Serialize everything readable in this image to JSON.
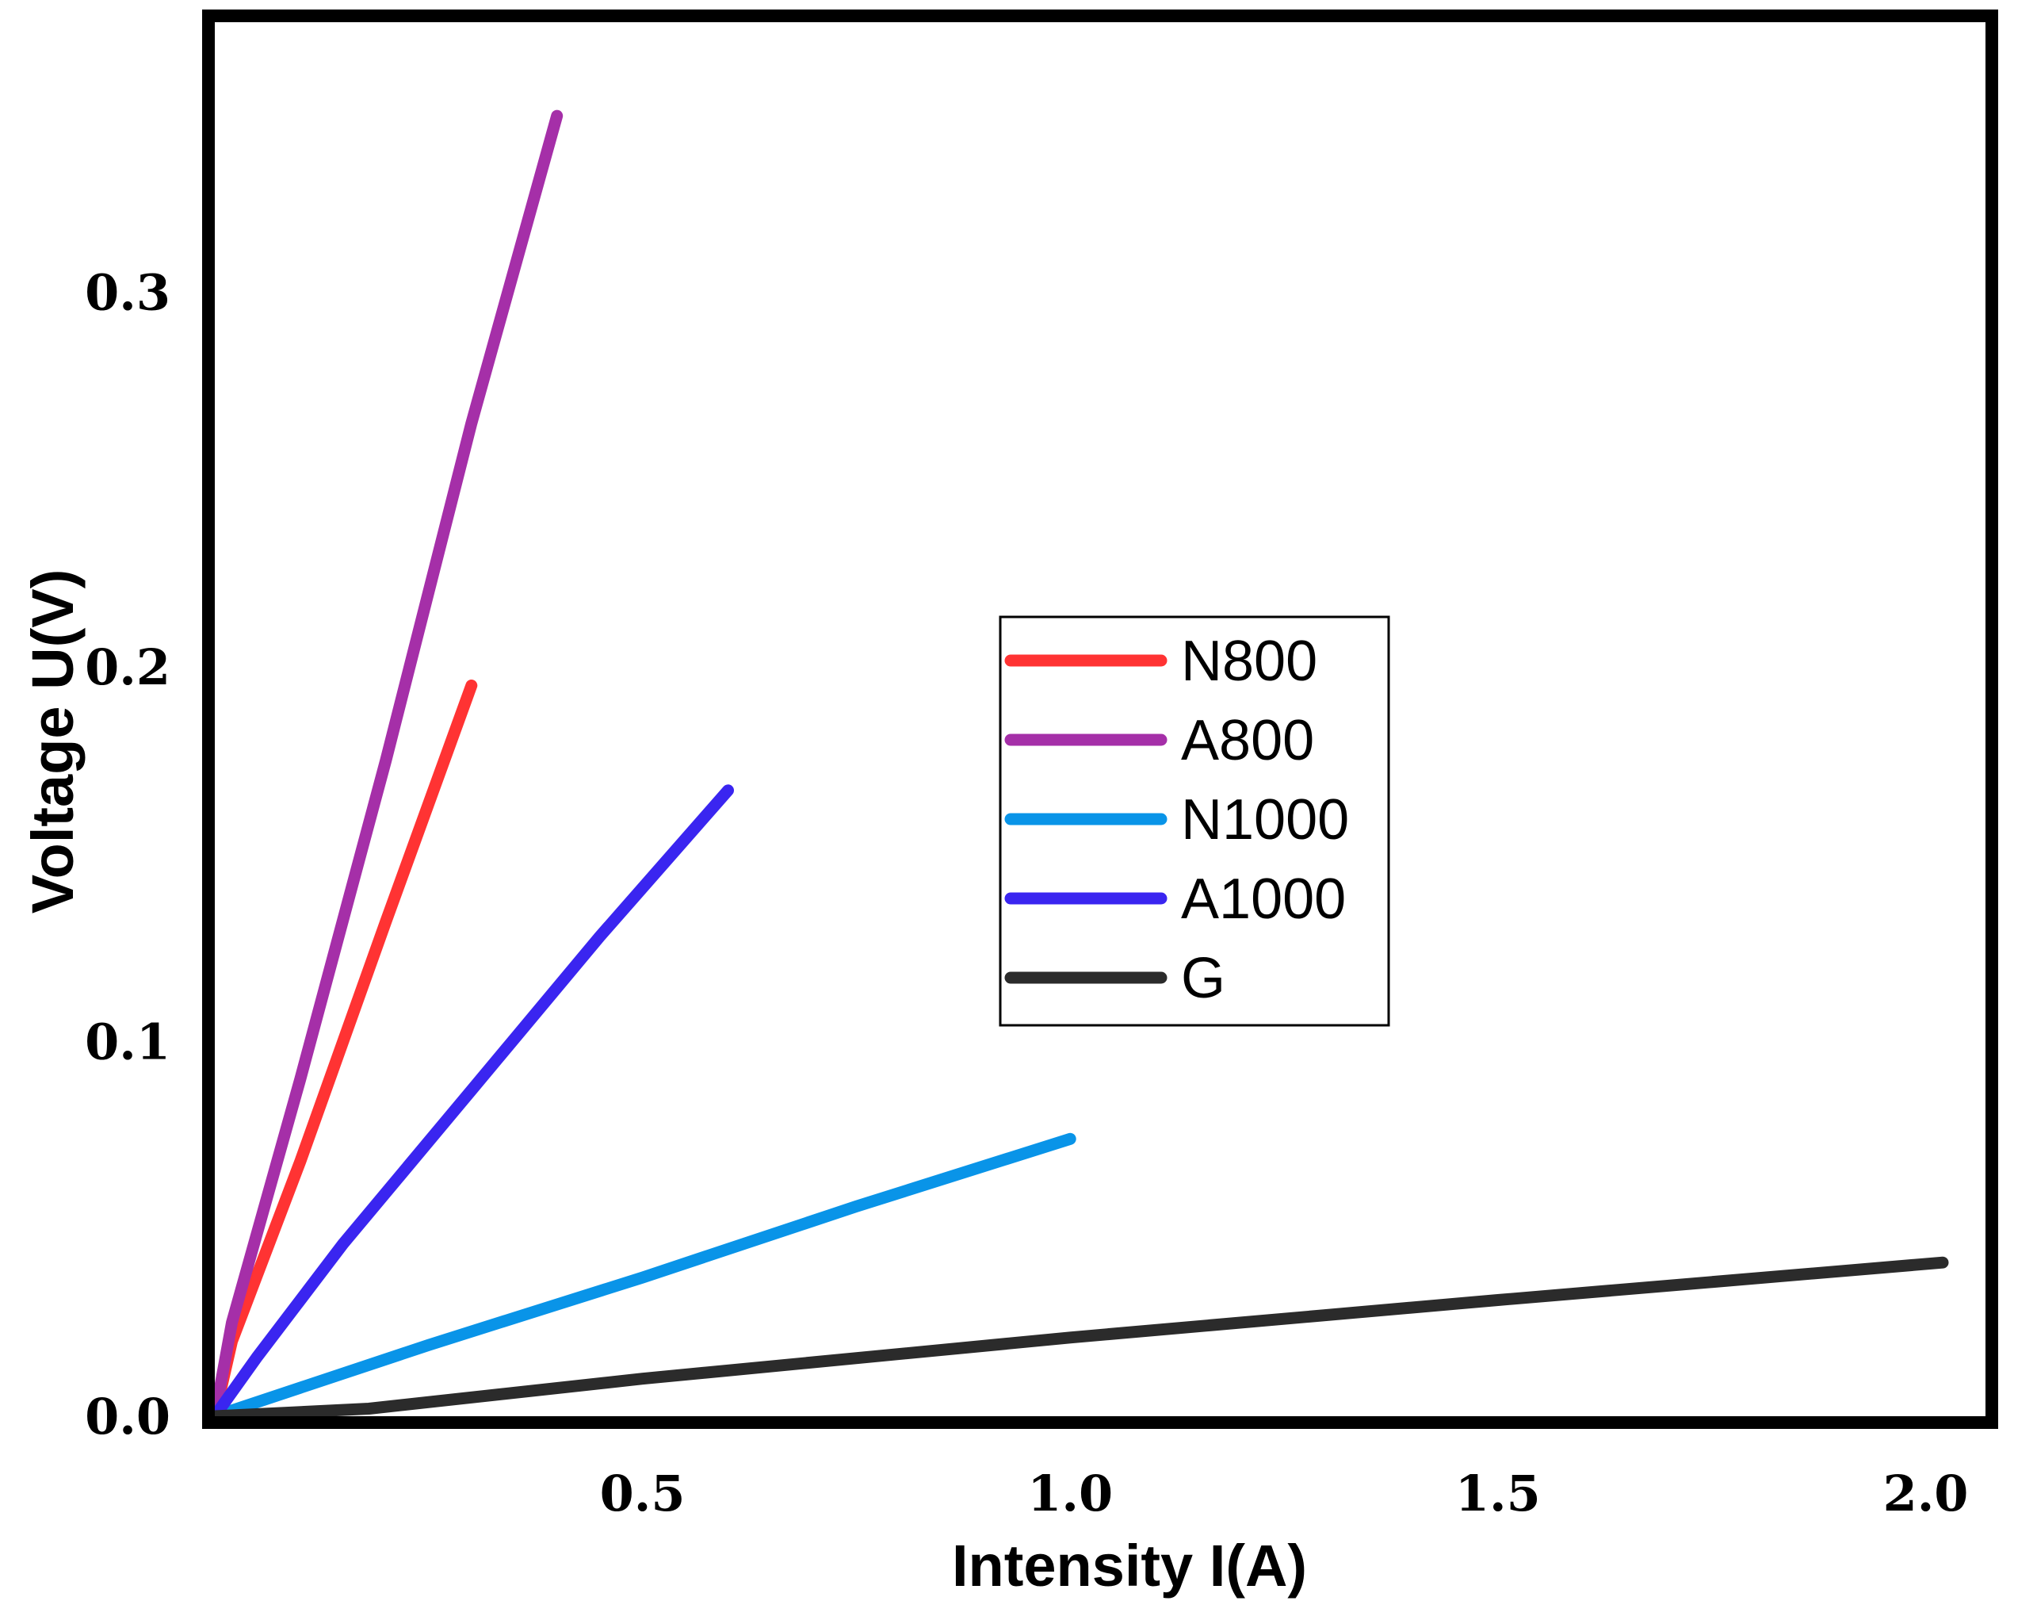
{
  "chart_data": {
    "type": "line",
    "title": "",
    "xlabel": "Intensity  I(A)",
    "ylabel": "Voltage U(V)",
    "xlim": [
      0,
      2.07
    ],
    "ylim": [
      0,
      0.372
    ],
    "xticks": [
      {
        "value": 0.5,
        "label": "0.5"
      },
      {
        "value": 1.0,
        "label": "1.0"
      },
      {
        "value": 1.5,
        "label": "1.5"
      },
      {
        "value": 2.0,
        "label": "2.0"
      }
    ],
    "yticks": [
      {
        "value": 0.0,
        "label": "0.0"
      },
      {
        "value": 0.1,
        "label": "0.1"
      },
      {
        "value": 0.2,
        "label": "0.2"
      },
      {
        "value": 0.3,
        "label": "0.3"
      }
    ],
    "grid": false,
    "legend_position": "center-right",
    "series": [
      {
        "name": "N800",
        "color": "#ff3333",
        "points": [
          [
            0,
            0
          ],
          [
            0.02,
            0.02
          ],
          [
            0.1,
            0.068
          ],
          [
            0.2,
            0.132
          ],
          [
            0.3,
            0.195
          ]
        ]
      },
      {
        "name": "A800",
        "color": "#a52fa8",
        "points": [
          [
            0,
            0
          ],
          [
            0.02,
            0.025
          ],
          [
            0.1,
            0.09
          ],
          [
            0.2,
            0.175
          ],
          [
            0.3,
            0.265
          ],
          [
            0.4,
            0.347
          ]
        ]
      },
      {
        "name": "N1000",
        "color": "#0994e8",
        "points": [
          [
            0,
            0
          ],
          [
            0.25,
            0.019
          ],
          [
            0.5,
            0.037
          ],
          [
            0.75,
            0.056
          ],
          [
            1.0,
            0.074
          ]
        ]
      },
      {
        "name": "A1000",
        "color": "#3a25f0",
        "points": [
          [
            0,
            0
          ],
          [
            0.05,
            0.016
          ],
          [
            0.15,
            0.046
          ],
          [
            0.3,
            0.087
          ],
          [
            0.45,
            0.128
          ],
          [
            0.6,
            0.167
          ]
        ]
      },
      {
        "name": "G",
        "color": "#2b2b2b",
        "points": [
          [
            0,
            0
          ],
          [
            0.18,
            0.002
          ],
          [
            0.5,
            0.01
          ],
          [
            1.0,
            0.021
          ],
          [
            1.5,
            0.031
          ],
          [
            2.02,
            0.041
          ]
        ]
      }
    ]
  }
}
